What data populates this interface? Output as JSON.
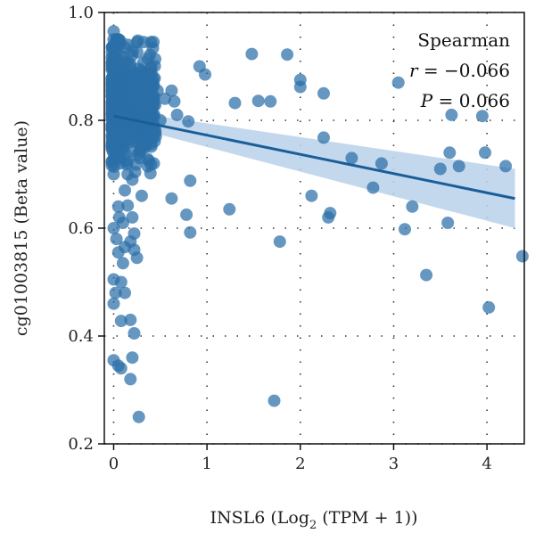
{
  "chart_data": {
    "type": "scatter",
    "xlabel": "INSL6 (Log",
    "xlabel_sub": "2",
    "xlabel_tail": " (TPM + 1))",
    "ylabel": "cg01003815 (Beta value)",
    "xlim": [
      -0.1,
      4.4
    ],
    "ylim": [
      0.2,
      1.0
    ],
    "xticks": [
      0,
      1,
      2,
      3,
      4
    ],
    "yticks": [
      0.2,
      0.4,
      0.6,
      0.8,
      1.0
    ],
    "xtick_labels": [
      "0",
      "1",
      "2",
      "3",
      "4"
    ],
    "ytick_labels": [
      "0.2",
      "0.4",
      "0.6",
      "0.8",
      "1.0"
    ],
    "grid": true,
    "legend": null,
    "annotation": {
      "title": "Spearman",
      "r_symbol": "r",
      "r_value": " = −0.066",
      "p_symbol": "P",
      "p_value": " = 0.066"
    },
    "point_color": "#2b6fa8",
    "line_color": "#1a5e99",
    "band_color": "#b9d1ea",
    "regression": {
      "x": [
        0,
        4.3
      ],
      "y": [
        0.808,
        0.655
      ],
      "ci_upper": [
        0.82,
        0.71
      ],
      "ci_lower": [
        0.796,
        0.6
      ]
    },
    "dense_cluster": {
      "x_range": [
        -0.02,
        0.45
      ],
      "y_center": 0.83,
      "y_spread": 0.05,
      "count": 620
    },
    "points": [
      [
        0.0,
        0.965
      ],
      [
        0.05,
        0.95
      ],
      [
        0.15,
        0.94
      ],
      [
        0.25,
        0.945
      ],
      [
        0.32,
        0.945
      ],
      [
        0.4,
        0.945
      ],
      [
        0.02,
        0.93
      ],
      [
        0.92,
        0.9
      ],
      [
        0.98,
        0.885
      ],
      [
        1.48,
        0.923
      ],
      [
        1.86,
        0.922
      ],
      [
        2.0,
        0.875
      ],
      [
        2.0,
        0.862
      ],
      [
        2.25,
        0.85
      ],
      [
        3.05,
        0.87
      ],
      [
        1.3,
        0.832
      ],
      [
        1.55,
        0.836
      ],
      [
        1.68,
        0.835
      ],
      [
        0.62,
        0.855
      ],
      [
        0.65,
        0.835
      ],
      [
        0.55,
        0.84
      ],
      [
        0.8,
        0.798
      ],
      [
        0.68,
        0.81
      ],
      [
        0.45,
        0.77
      ],
      [
        0.42,
        0.768
      ],
      [
        0.43,
        0.72
      ],
      [
        0.25,
        0.735
      ],
      [
        0.28,
        0.73
      ],
      [
        0.4,
        0.718
      ],
      [
        0.15,
        0.7
      ],
      [
        0.2,
        0.69
      ],
      [
        0.12,
        0.67
      ],
      [
        0.62,
        0.655
      ],
      [
        0.82,
        0.688
      ],
      [
        0.78,
        0.625
      ],
      [
        0.82,
        0.592
      ],
      [
        0.05,
        0.64
      ],
      [
        0.15,
        0.642
      ],
      [
        0.2,
        0.62
      ],
      [
        0.22,
        0.59
      ],
      [
        0.18,
        0.575
      ],
      [
        0.12,
        0.565
      ],
      [
        0.22,
        0.56
      ],
      [
        0.25,
        0.545
      ],
      [
        0.05,
        0.555
      ],
      [
        0.1,
        0.535
      ],
      [
        0.0,
        0.505
      ],
      [
        0.08,
        0.5
      ],
      [
        0.12,
        0.48
      ],
      [
        0.02,
        0.48
      ],
      [
        0.0,
        0.46
      ],
      [
        0.18,
        0.43
      ],
      [
        0.08,
        0.428
      ],
      [
        0.22,
        0.405
      ],
      [
        0.2,
        0.36
      ],
      [
        0.0,
        0.355
      ],
      [
        0.05,
        0.345
      ],
      [
        0.08,
        0.34
      ],
      [
        0.18,
        0.32
      ],
      [
        0.27,
        0.25
      ],
      [
        0.0,
        0.6
      ],
      [
        0.03,
        0.58
      ],
      [
        0.06,
        0.62
      ],
      [
        1.24,
        0.635
      ],
      [
        1.78,
        0.575
      ],
      [
        1.72,
        0.28
      ],
      [
        2.12,
        0.66
      ],
      [
        2.25,
        0.768
      ],
      [
        2.32,
        0.628
      ],
      [
        2.3,
        0.62
      ],
      [
        2.55,
        0.73
      ],
      [
        2.78,
        0.675
      ],
      [
        2.87,
        0.72
      ],
      [
        3.12,
        0.598
      ],
      [
        3.2,
        0.64
      ],
      [
        3.35,
        0.513
      ],
      [
        3.5,
        0.71
      ],
      [
        3.58,
        0.61
      ],
      [
        3.62,
        0.81
      ],
      [
        3.6,
        0.74
      ],
      [
        3.7,
        0.715
      ],
      [
        3.95,
        0.808
      ],
      [
        3.98,
        0.74
      ],
      [
        4.02,
        0.453
      ],
      [
        4.2,
        0.715
      ],
      [
        4.38,
        0.548
      ],
      [
        0.3,
        0.75
      ],
      [
        0.35,
        0.79
      ],
      [
        0.47,
        0.855
      ],
      [
        0.5,
        0.8
      ],
      [
        0.0,
        0.7
      ],
      [
        0.07,
        0.72
      ],
      [
        0.12,
        0.74
      ],
      [
        0.3,
        0.66
      ],
      [
        0.1,
        0.61
      ]
    ]
  }
}
